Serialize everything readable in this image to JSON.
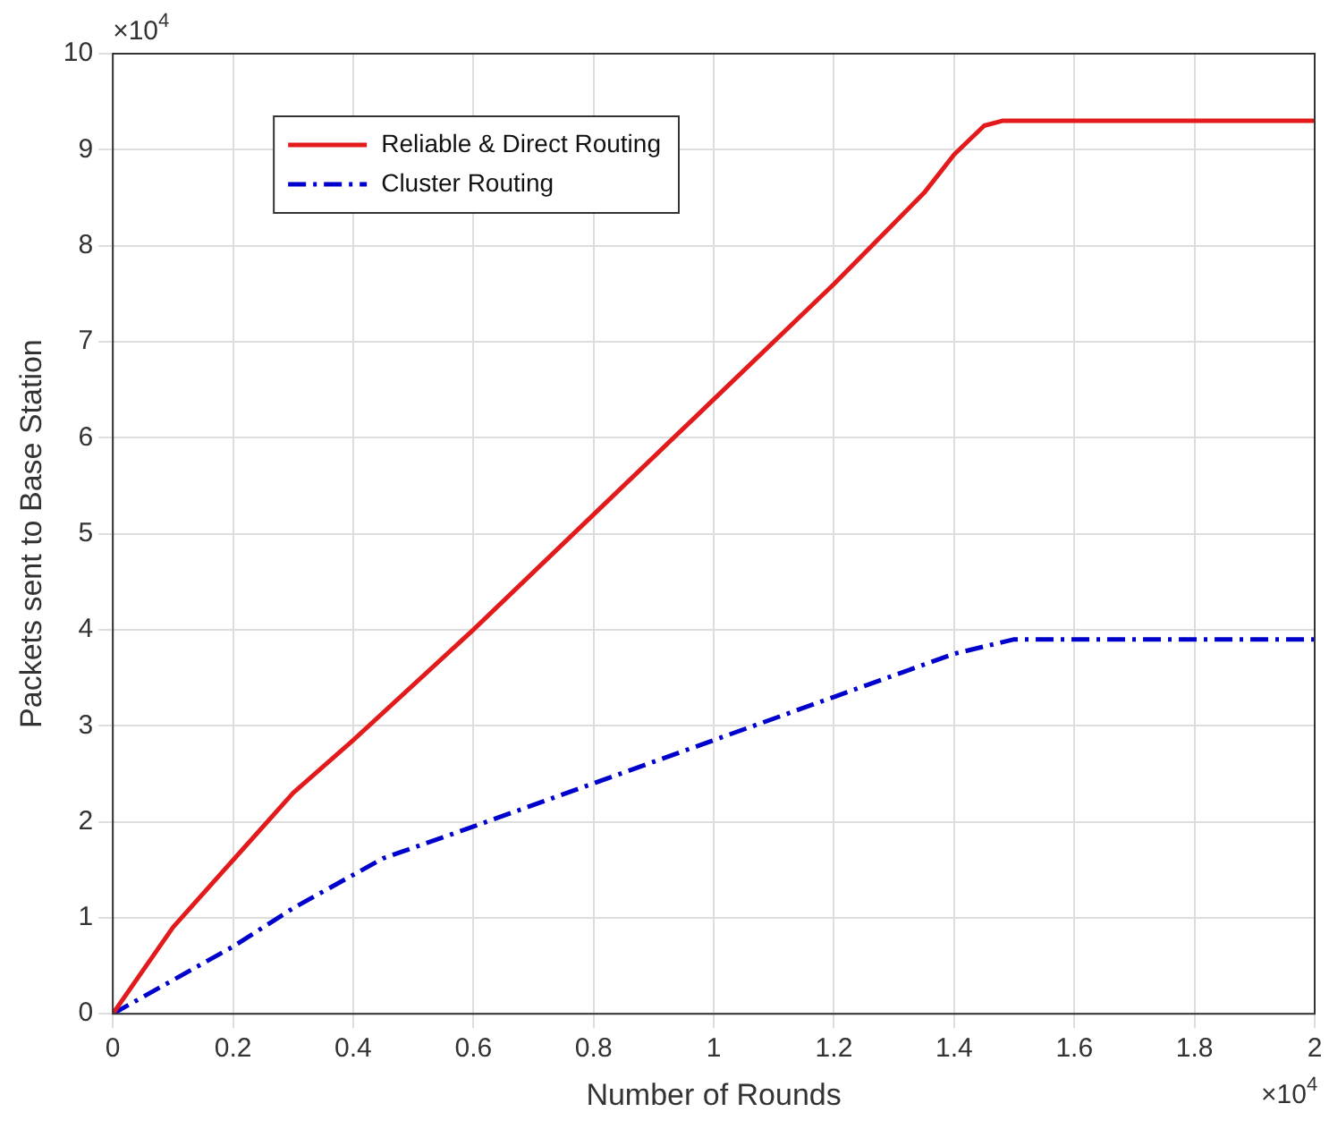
{
  "chart_data": {
    "type": "line",
    "xlabel": "Number of Rounds",
    "ylabel": "Packets sent to Base Station",
    "xlim": [
      0,
      2
    ],
    "xticks": [
      0,
      0.2,
      0.4,
      0.6,
      0.8,
      1,
      1.2,
      1.4,
      1.6,
      1.8,
      2
    ],
    "ylim": [
      0,
      10
    ],
    "yticks": [
      0,
      1,
      2,
      3,
      4,
      5,
      6,
      7,
      8,
      9,
      10
    ],
    "series": [
      {
        "name": "Reliable & Direct Routing",
        "color": "#e31a1c",
        "line_style": "solid",
        "x": [
          0,
          0.1,
          0.2,
          0.3,
          0.4,
          0.6,
          0.8,
          1,
          1.2,
          1.35,
          1.4,
          1.45,
          1.48,
          2
        ],
        "values": [
          0,
          0.9,
          1.6,
          2.3,
          2.85,
          4,
          5.2,
          6.4,
          7.6,
          8.55,
          8.95,
          9.25,
          9.3,
          9.3
        ]
      },
      {
        "name": "Cluster Routing",
        "color": "#0000cc",
        "line_style": "dashed",
        "x": [
          0,
          0.2,
          0.3,
          0.45,
          0.6,
          0.8,
          1,
          1.2,
          1.4,
          1.5,
          2
        ],
        "values": [
          0,
          0.7,
          1.1,
          1.62,
          1.95,
          2.4,
          2.85,
          3.3,
          3.75,
          3.9,
          3.9
        ]
      }
    ],
    "grid": true,
    "legend": "top left",
    "marker": "none",
    "annotations": [
      "×10$^{4}$",
      "×10$^{4}$"
    ]
  }
}
